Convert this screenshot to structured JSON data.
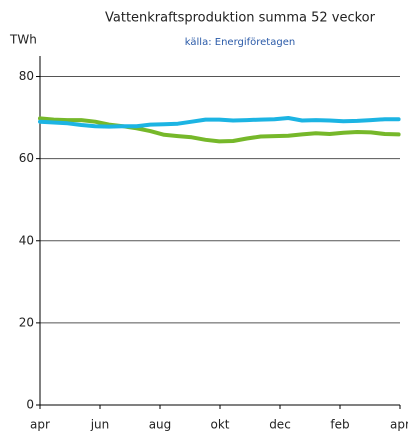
{
  "chart_data": {
    "type": "line",
    "title": "Vattenkraftsproduktion summa 52 veckor",
    "subtitle": "källa: Energiföretagen",
    "y_label": "TWh",
    "x": [
      0,
      2,
      4,
      6,
      8,
      10,
      12,
      14,
      16,
      18,
      20,
      22,
      24,
      26,
      28,
      30,
      32,
      34,
      36,
      38,
      40,
      42,
      44,
      46,
      48,
      50,
      52
    ],
    "series": [
      {
        "color": "#76b82a",
        "values": [
          69.8,
          69.5,
          69.4,
          69.4,
          69.0,
          68.3,
          67.9,
          67.4,
          66.7,
          65.8,
          65.5,
          65.2,
          64.6,
          64.2,
          64.3,
          64.9,
          65.4,
          65.5,
          65.6,
          65.9,
          66.2,
          66.0,
          66.3,
          66.5,
          66.4,
          66.0,
          65.9
        ]
      },
      {
        "color": "#1cb4e3",
        "values": [
          69.0,
          68.8,
          68.6,
          68.2,
          67.9,
          67.8,
          67.9,
          67.9,
          68.3,
          68.4,
          68.5,
          69.0,
          69.5,
          69.5,
          69.3,
          69.4,
          69.5,
          69.6,
          69.9,
          69.3,
          69.4,
          69.3,
          69.1,
          69.2,
          69.4,
          69.6,
          69.6
        ]
      }
    ],
    "xlim": [
      0,
      52.2
    ],
    "xticks": [
      {
        "value": 0,
        "label": "apr"
      },
      {
        "value": 8.7,
        "label": "jun"
      },
      {
        "value": 17.4,
        "label": "aug"
      },
      {
        "value": 26.1,
        "label": "okt"
      },
      {
        "value": 34.8,
        "label": "dec"
      },
      {
        "value": 43.5,
        "label": "feb"
      },
      {
        "value": 52.2,
        "label": "apr"
      }
    ],
    "ylim": [
      0,
      85
    ],
    "yticks": [
      0,
      20,
      40,
      60,
      80
    ],
    "grid": true
  }
}
